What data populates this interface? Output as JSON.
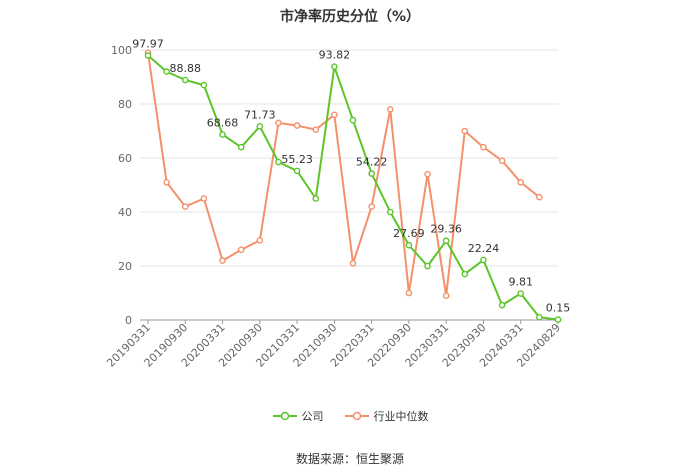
{
  "title": "市净率历史分位（%）",
  "source": "数据来源：恒生聚源",
  "colors": {
    "company": "#5cc52a",
    "industry": "#f4906a",
    "grid": "#e6e6e6",
    "axis": "#999999"
  },
  "chart_data": {
    "type": "line",
    "title": "市净率历史分位（%）",
    "ylim": [
      0,
      100
    ],
    "yticks": [
      0,
      20,
      40,
      60,
      80,
      100
    ],
    "grid": "horizontal",
    "legend_position": "bottom",
    "x_tick_labels": [
      "20190331",
      "20190930",
      "20200331",
      "20200930",
      "20210331",
      "20210930",
      "20220331",
      "20220930",
      "20230331",
      "20230930",
      "20240331",
      "20240829"
    ],
    "series": [
      {
        "name": "公司",
        "color": "#5cc52a",
        "values": [
          97.97,
          92,
          88.88,
          87,
          68.68,
          64,
          71.73,
          58.5,
          55.23,
          45,
          93.82,
          74,
          54.22,
          40,
          27.69,
          20,
          29.36,
          17,
          22.24,
          5.5,
          9.81,
          1,
          0.15
        ],
        "labels": [
          "97.97",
          null,
          "88.88",
          null,
          "68.68",
          null,
          "71.73",
          null,
          "55.23",
          null,
          "93.82",
          null,
          "54.22",
          null,
          "27.69",
          null,
          "29.36",
          null,
          "22.24",
          null,
          "9.81",
          null,
          "0.15"
        ]
      },
      {
        "name": "行业中位数",
        "color": "#f4906a",
        "values": [
          99,
          51,
          42,
          45,
          22,
          26,
          29.5,
          73,
          72,
          70.5,
          76,
          21,
          42,
          78,
          10,
          54,
          9,
          70,
          64,
          59,
          51,
          45.5,
          null
        ]
      }
    ]
  }
}
